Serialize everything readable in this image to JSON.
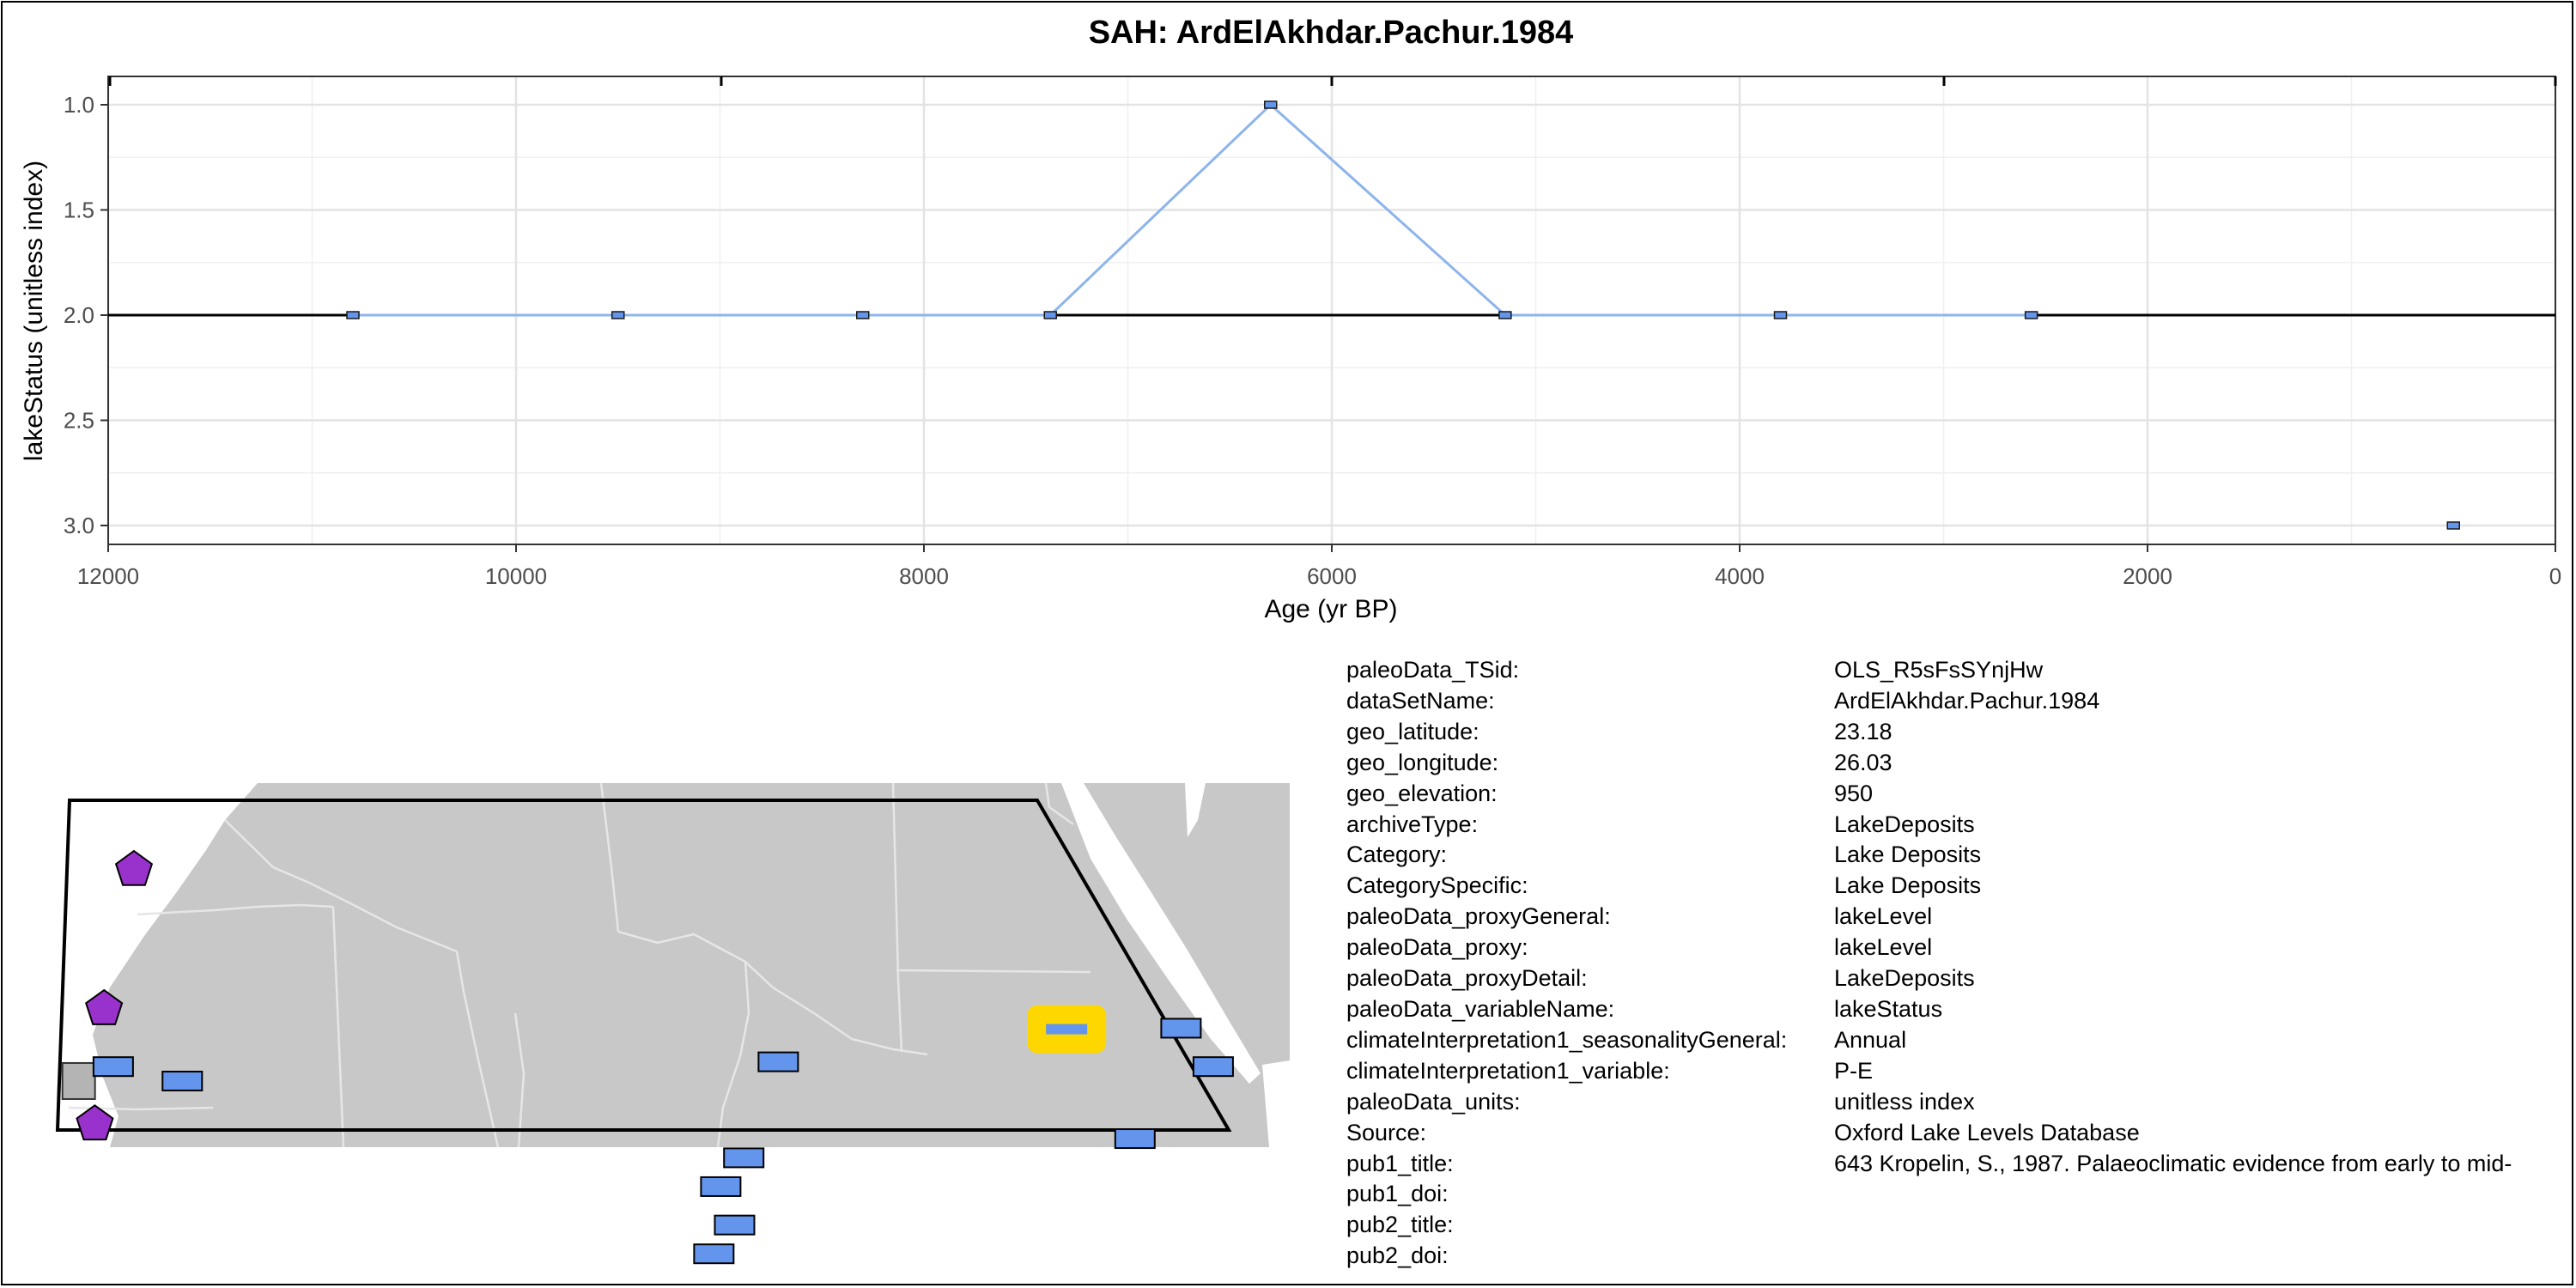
{
  "chart_data": {
    "type": "line",
    "title": "SAH: ArdElAkhdar.Pachur.1984",
    "xlabel": "Age (yr BP)",
    "ylabel": "lakeStatus (unitless index)",
    "xlim": [
      12000,
      0
    ],
    "ylim": [
      3.0,
      1.0
    ],
    "x_reversed": true,
    "y_reversed": true,
    "xticks": [
      12000,
      10000,
      8000,
      6000,
      4000,
      2000,
      0
    ],
    "yticks": [
      1.0,
      1.5,
      2.0,
      2.5,
      3.0
    ],
    "xtick_labels": [
      "12000",
      "10000",
      "8000",
      "6000",
      "4000",
      "2000",
      "0"
    ],
    "ytick_labels": [
      "1.0",
      "1.5",
      "2.0",
      "2.5",
      "3.0"
    ],
    "grid": true,
    "reference_line_y": 2.0,
    "line_color": "#8db4ec",
    "marker_color": "#6495ED",
    "series": [
      {
        "x": [
          10800,
          9500,
          8300,
          7380,
          6300,
          5150,
          3800,
          2570,
          500
        ],
        "y": [
          2,
          2,
          2,
          2,
          1,
          2,
          2,
          2,
          3
        ]
      }
    ]
  },
  "map": {
    "land_color": "#c8c8c8",
    "sites": [
      {
        "shape": "pentagon",
        "color": "#9932CC",
        "lon": -14.5,
        "lat": 26.5
      },
      {
        "shape": "pentagon",
        "color": "#9932CC",
        "lon": -15.8,
        "lat": 23.6
      },
      {
        "shape": "pentagon",
        "color": "#9932CC",
        "lon": -16.2,
        "lat": 21.2
      },
      {
        "shape": "square",
        "color": "#b4b4b4",
        "lon": -16.9,
        "lat": 22.1
      },
      {
        "shape": "rect",
        "color": "#6495ED",
        "lon": -15.4,
        "lat": 22.4
      },
      {
        "shape": "rect",
        "color": "#6495ED",
        "lon": -12.4,
        "lat": 22.1
      },
      {
        "shape": "rect",
        "color": "#6495ED",
        "lon": 11.0,
        "lat": 19.9
      },
      {
        "shape": "rect",
        "color": "#6495ED",
        "lon": 12.0,
        "lat": 20.5
      },
      {
        "shape": "rect",
        "color": "#6495ED",
        "lon": 11.6,
        "lat": 19.1
      },
      {
        "shape": "rect",
        "color": "#6495ED",
        "lon": 10.7,
        "lat": 18.5
      },
      {
        "shape": "rect",
        "color": "#6495ED",
        "lon": 13.5,
        "lat": 22.5
      },
      {
        "shape": "rect",
        "color": "#6495ED",
        "lon": 31.0,
        "lat": 23.2
      },
      {
        "shape": "rect",
        "color": "#6495ED",
        "lon": 32.4,
        "lat": 22.4
      },
      {
        "shape": "rect",
        "color": "#6495ED",
        "lon": 29.0,
        "lat": 20.9
      },
      {
        "shape": "rect-highlight",
        "color": "#6495ED",
        "lon": 26.03,
        "lat": 23.18
      }
    ]
  },
  "metadata": [
    {
      "key": "paleoData_TSid:",
      "value": "OLS_R5sFsSYnjHw"
    },
    {
      "key": "dataSetName:",
      "value": "ArdElAkhdar.Pachur.1984"
    },
    {
      "key": "geo_latitude:",
      "value": "23.18"
    },
    {
      "key": "geo_longitude:",
      "value": "26.03"
    },
    {
      "key": "geo_elevation:",
      "value": "950"
    },
    {
      "key": "archiveType:",
      "value": "LakeDeposits"
    },
    {
      "key": "Category:",
      "value": "Lake Deposits"
    },
    {
      "key": "CategorySpecific:",
      "value": "Lake Deposits"
    },
    {
      "key": "paleoData_proxyGeneral:",
      "value": "lakeLevel"
    },
    {
      "key": "paleoData_proxy:",
      "value": "lakeLevel"
    },
    {
      "key": "paleoData_proxyDetail:",
      "value": "LakeDeposits"
    },
    {
      "key": "paleoData_variableName:",
      "value": "lakeStatus"
    },
    {
      "key": "climateInterpretation1_seasonalityGeneral:",
      "value": "Annual"
    },
    {
      "key": "climateInterpretation1_variable:",
      "value": "P-E"
    },
    {
      "key": "paleoData_units:",
      "value": "unitless index"
    },
    {
      "key": "Source:",
      "value": "Oxford Lake Levels Database"
    },
    {
      "key": "pub1_title:",
      "value": "643 Kropelin, S., 1987. Palaeoclimatic evidence from early to mid-"
    },
    {
      "key": "pub1_doi:",
      "value": ""
    },
    {
      "key": "pub2_title:",
      "value": ""
    },
    {
      "key": "pub2_doi:",
      "value": ""
    }
  ]
}
